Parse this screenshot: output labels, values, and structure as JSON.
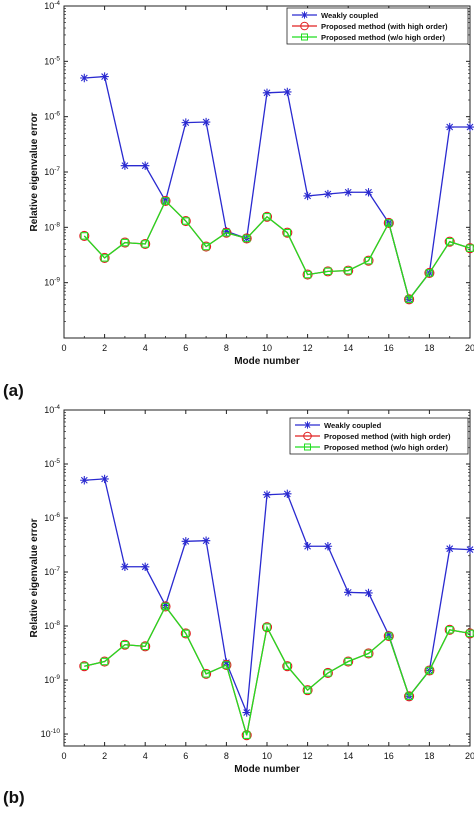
{
  "chart_data": [
    {
      "panel_label": "(a)",
      "type": "line",
      "title": "",
      "xlabel": "Mode number",
      "ylabel": "Relative eigenvalue error",
      "xlim": [
        0,
        20
      ],
      "x_ticks": [
        0,
        2,
        4,
        6,
        8,
        10,
        12,
        14,
        16,
        18,
        20
      ],
      "ylim": [
        1e-10,
        0.0001
      ],
      "y_scale": "log",
      "y_ticks": [
        1e-09,
        1e-08,
        1e-07,
        1e-06,
        1e-05,
        0.0001
      ],
      "y_tick_labels": [
        "10^-9",
        "10^-8",
        "10^-7",
        "10^-6",
        "10^-5",
        "10^-4"
      ],
      "grid": false,
      "legend_position": "top-right",
      "x": [
        1,
        2,
        3,
        4,
        5,
        6,
        7,
        8,
        9,
        10,
        11,
        12,
        13,
        14,
        15,
        16,
        17,
        18,
        19,
        20
      ],
      "series": [
        {
          "name": "Weakly coupled",
          "color": "#2a2ad0",
          "marker": "asterisk",
          "values": [
            5e-06,
            5.3e-06,
            1.3e-07,
            1.3e-07,
            3e-08,
            7.8e-07,
            8e-07,
            8.5e-09,
            6.3e-09,
            2.7e-06,
            2.8e-06,
            3.7e-08,
            4e-08,
            4.3e-08,
            4.3e-08,
            1.2e-08,
            5e-10,
            1.5e-09,
            6.5e-07,
            6.5e-07
          ]
        },
        {
          "name": "Proposed method (with high order)",
          "color": "#e02020",
          "marker": "circle",
          "values": [
            7e-09,
            2.8e-09,
            5.3e-09,
            5e-09,
            3e-08,
            1.3e-08,
            4.5e-09,
            8e-09,
            6.3e-09,
            1.55e-08,
            8e-09,
            1.4e-09,
            1.6e-09,
            1.65e-09,
            2.5e-09,
            1.2e-08,
            5e-10,
            1.5e-09,
            5.5e-09,
            4.2e-09
          ]
        },
        {
          "name": "Proposed method (w/o high order)",
          "color": "#22dd22",
          "marker": "square",
          "values": [
            7e-09,
            2.8e-09,
            5.3e-09,
            5e-09,
            3e-08,
            1.3e-08,
            4.5e-09,
            8e-09,
            6.3e-09,
            1.55e-08,
            8e-09,
            1.4e-09,
            1.6e-09,
            1.65e-09,
            2.5e-09,
            1.2e-08,
            5e-10,
            1.5e-09,
            5.5e-09,
            4.2e-09
          ]
        }
      ]
    },
    {
      "panel_label": "(b)",
      "type": "line",
      "title": "",
      "xlabel": "Mode number",
      "ylabel": "Relative eigenvalue error",
      "xlim": [
        0,
        20
      ],
      "x_ticks": [
        0,
        2,
        4,
        6,
        8,
        10,
        12,
        14,
        16,
        18,
        20
      ],
      "ylim": [
        6e-11,
        0.0001
      ],
      "y_scale": "log",
      "y_ticks": [
        1e-10,
        1e-09,
        1e-08,
        1e-07,
        1e-06,
        1e-05,
        0.0001
      ],
      "y_tick_labels": [
        "10^-10",
        "10^-9",
        "10^-8",
        "10^-7",
        "10^-6",
        "10^-5",
        "10^-4"
      ],
      "grid": false,
      "legend_position": "top-right",
      "x": [
        1,
        2,
        3,
        4,
        5,
        6,
        7,
        8,
        9,
        10,
        11,
        12,
        13,
        14,
        15,
        16,
        17,
        18,
        19,
        20
      ],
      "series": [
        {
          "name": "Weakly coupled",
          "color": "#2a2ad0",
          "marker": "asterisk",
          "values": [
            5e-06,
            5.3e-06,
            1.25e-07,
            1.25e-07,
            2.4e-08,
            3.7e-07,
            3.8e-07,
            2.1e-09,
            2.5e-10,
            2.7e-06,
            2.8e-06,
            3e-07,
            3e-07,
            4.2e-08,
            4.1e-08,
            6.8e-09,
            5e-10,
            1.5e-09,
            2.7e-07,
            2.6e-07
          ]
        },
        {
          "name": "Proposed method (with high order)",
          "color": "#e02020",
          "marker": "circle",
          "values": [
            1.8e-09,
            2.2e-09,
            4.5e-09,
            4.2e-09,
            2.3e-08,
            7.3e-09,
            1.3e-09,
            1.9e-09,
            9.5e-11,
            9.5e-09,
            1.8e-09,
            6.5e-10,
            1.35e-09,
            2.2e-09,
            3.1e-09,
            6.5e-09,
            5e-10,
            1.5e-09,
            8.5e-09,
            7.3e-09
          ]
        },
        {
          "name": "Proposed method (w/o high order)",
          "color": "#22dd22",
          "marker": "square",
          "values": [
            1.8e-09,
            2.2e-09,
            4.5e-09,
            4.2e-09,
            2.3e-08,
            7.3e-09,
            1.3e-09,
            1.9e-09,
            9.5e-11,
            9.5e-09,
            1.8e-09,
            6.5e-10,
            1.35e-09,
            2.2e-09,
            3.1e-09,
            6.5e-09,
            5e-10,
            1.5e-09,
            8.5e-09,
            7.3e-09
          ]
        }
      ]
    }
  ]
}
